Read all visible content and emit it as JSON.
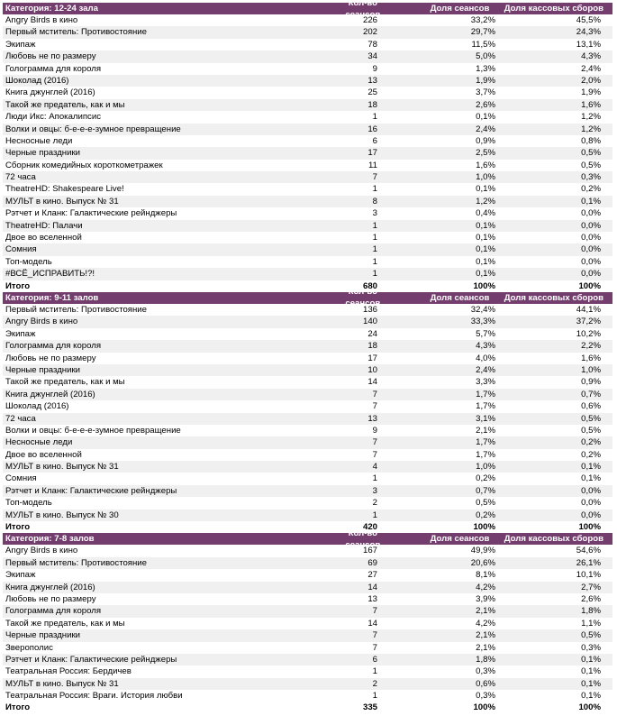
{
  "headers": {
    "sessions": "Кол-во сеансов",
    "session_share": "Доля сеансов",
    "box_share": "Доля кассовых сборов"
  },
  "sections": [
    {
      "category": "Категория: 12-24 зала",
      "rows": [
        [
          "Angry Birds в кино",
          "226",
          "33,2%",
          "45,5%"
        ],
        [
          "Первый мститель: Противостояние",
          "202",
          "29,7%",
          "24,3%"
        ],
        [
          "Экипаж",
          "78",
          "11,5%",
          "13,1%"
        ],
        [
          "Любовь не по размеру",
          "34",
          "5,0%",
          "4,3%"
        ],
        [
          "Голограмма для короля",
          "9",
          "1,3%",
          "2,4%"
        ],
        [
          "Шоколад (2016)",
          "13",
          "1,9%",
          "2,0%"
        ],
        [
          "Книга джунглей (2016)",
          "25",
          "3,7%",
          "1,9%"
        ],
        [
          "Такой же предатель, как и мы",
          "18",
          "2,6%",
          "1,6%"
        ],
        [
          "Люди Икс: Апокалипсис",
          "1",
          "0,1%",
          "1,2%"
        ],
        [
          "Волки и овцы: б-е-е-е-зумное превращение",
          "16",
          "2,4%",
          "1,2%"
        ],
        [
          "Несносные леди",
          "6",
          "0,9%",
          "0,8%"
        ],
        [
          "Черные праздники",
          "17",
          "2,5%",
          "0,5%"
        ],
        [
          "Сборник комедийных короткометражек",
          "11",
          "1,6%",
          "0,5%"
        ],
        [
          "72 часа",
          "7",
          "1,0%",
          "0,3%"
        ],
        [
          "TheatreHD: Shakespeare Live!",
          "1",
          "0,1%",
          "0,2%"
        ],
        [
          "МУЛЬТ в кино. Выпуск № 31",
          "8",
          "1,2%",
          "0,1%"
        ],
        [
          "Рэтчет и Кланк: Галактические рейнджеры",
          "3",
          "0,4%",
          "0,0%"
        ],
        [
          "TheatreHD: Палачи",
          "1",
          "0,1%",
          "0,0%"
        ],
        [
          "Двое во вселенной",
          "1",
          "0,1%",
          "0,0%"
        ],
        [
          "Сомния",
          "1",
          "0,1%",
          "0,0%"
        ],
        [
          "Топ-модель",
          "1",
          "0,1%",
          "0,0%"
        ],
        [
          "#ВСЁ_ИСПРАВИТЬ!?!",
          "1",
          "0,1%",
          "0,0%"
        ]
      ],
      "total": [
        "Итого",
        "680",
        "100%",
        "100%"
      ]
    },
    {
      "category": "Категория: 9-11 залов",
      "rows": [
        [
          "Первый мститель: Противостояние",
          "136",
          "32,4%",
          "44,1%"
        ],
        [
          "Angry Birds в кино",
          "140",
          "33,3%",
          "37,2%"
        ],
        [
          "Экипаж",
          "24",
          "5,7%",
          "10,2%"
        ],
        [
          "Голограмма для короля",
          "18",
          "4,3%",
          "2,2%"
        ],
        [
          "Любовь не по размеру",
          "17",
          "4,0%",
          "1,6%"
        ],
        [
          "Черные праздники",
          "10",
          "2,4%",
          "1,0%"
        ],
        [
          "Такой же предатель, как и мы",
          "14",
          "3,3%",
          "0,9%"
        ],
        [
          "Книга джунглей (2016)",
          "7",
          "1,7%",
          "0,7%"
        ],
        [
          "Шоколад (2016)",
          "7",
          "1,7%",
          "0,6%"
        ],
        [
          "72 часа",
          "13",
          "3,1%",
          "0,5%"
        ],
        [
          "Волки и овцы: б-е-е-е-зумное превращение",
          "9",
          "2,1%",
          "0,5%"
        ],
        [
          "Несносные леди",
          "7",
          "1,7%",
          "0,2%"
        ],
        [
          "Двое во вселенной",
          "7",
          "1,7%",
          "0,2%"
        ],
        [
          "МУЛЬТ в кино. Выпуск № 31",
          "4",
          "1,0%",
          "0,1%"
        ],
        [
          "Сомния",
          "1",
          "0,2%",
          "0,1%"
        ],
        [
          "Рэтчет и Кланк: Галактические рейнджеры",
          "3",
          "0,7%",
          "0,0%"
        ],
        [
          "Топ-модель",
          "2",
          "0,5%",
          "0,0%"
        ],
        [
          "МУЛЬТ в кино. Выпуск № 30",
          "1",
          "0,2%",
          "0,0%"
        ]
      ],
      "total": [
        "Итого",
        "420",
        "100%",
        "100%"
      ]
    },
    {
      "category": "Категория: 7-8 залов",
      "rows": [
        [
          "Angry Birds в кино",
          "167",
          "49,9%",
          "54,6%"
        ],
        [
          "Первый мститель: Противостояние",
          "69",
          "20,6%",
          "26,1%"
        ],
        [
          "Экипаж",
          "27",
          "8,1%",
          "10,1%"
        ],
        [
          "Книга джунглей (2016)",
          "14",
          "4,2%",
          "2,7%"
        ],
        [
          "Любовь не по размеру",
          "13",
          "3,9%",
          "2,6%"
        ],
        [
          "Голограмма для короля",
          "7",
          "2,1%",
          "1,8%"
        ],
        [
          "Такой же предатель, как и мы",
          "14",
          "4,2%",
          "1,1%"
        ],
        [
          "Черные праздники",
          "7",
          "2,1%",
          "0,5%"
        ],
        [
          "Зверополис",
          "7",
          "2,1%",
          "0,3%"
        ],
        [
          "Рэтчет и Кланк: Галактические рейнджеры",
          "6",
          "1,8%",
          "0,1%"
        ],
        [
          "Театральная Россия: Бердичев",
          "1",
          "0,3%",
          "0,1%"
        ],
        [
          "МУЛЬТ в кино. Выпуск № 31",
          "2",
          "0,6%",
          "0,1%"
        ],
        [
          "Театральная Россия: Враги. История любви",
          "1",
          "0,3%",
          "0,1%"
        ]
      ],
      "total": [
        "Итого",
        "335",
        "100%",
        "100%"
      ]
    }
  ]
}
